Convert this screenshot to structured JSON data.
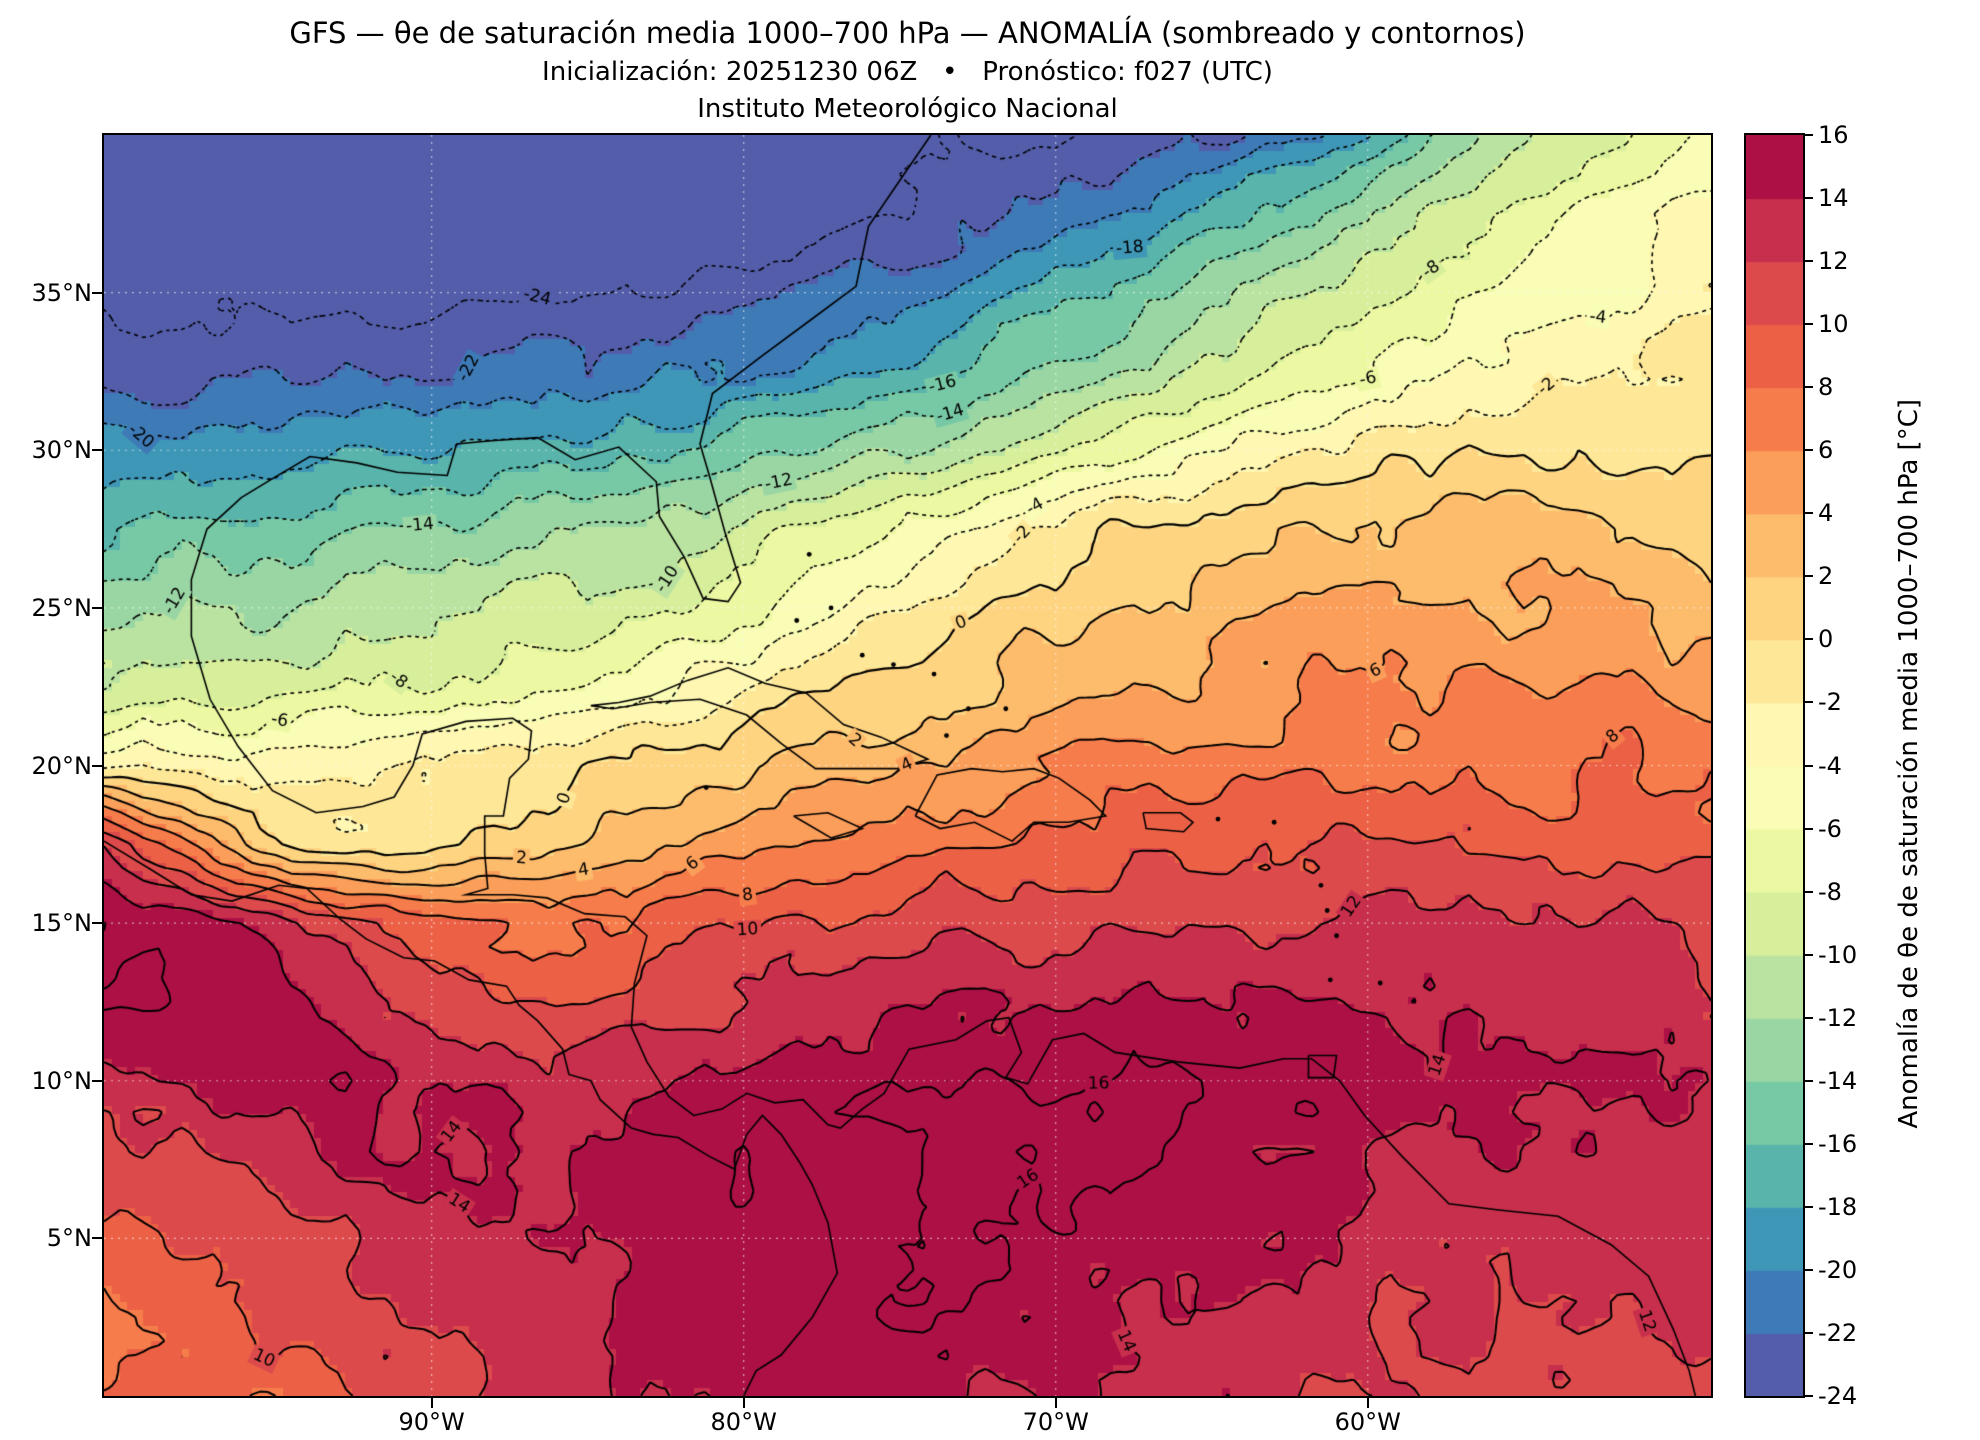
{
  "chart_data": {
    "type": "heatmap",
    "subtype": "filled_contour_map",
    "title": "GFS — θe de saturación media 1000–700 hPa — ANOMALÍA (sombreado y contornos)",
    "subtitle": "Inicialización: 20251230 06Z   •   Pronóstico: f027 (UTC)",
    "institution": "Instituto Meteorológico Nacional",
    "units": "°C",
    "lon_min": -100.5,
    "lon_max": -49.0,
    "lat_min": 0,
    "lat_max": 40,
    "rows_order": "lat 40N (first row) to 0N (last row)",
    "values": [
      [
        -26,
        -26,
        -26,
        -26,
        -26,
        -26,
        -26,
        -26,
        -26,
        -26,
        -25,
        -25,
        -24,
        -23,
        -22,
        -20,
        -17,
        -13,
        -10,
        -8,
        -6
      ],
      [
        -26,
        -26,
        -26,
        -26,
        -26,
        -26,
        -26,
        -25,
        -25,
        -25,
        -24,
        -23,
        -21,
        -19,
        -17,
        -14,
        -11,
        -9,
        -7,
        -5,
        -4
      ],
      [
        -25,
        -25,
        -25,
        -25,
        -25,
        -24,
        -24,
        -24,
        -23,
        -22,
        -21,
        -19,
        -17,
        -15,
        -12,
        -10,
        -8,
        -6,
        -5,
        -4,
        -3
      ],
      [
        -23,
        -23,
        -22,
        -22,
        -22,
        -21,
        -21,
        -20,
        -20,
        -19,
        -17,
        -15,
        -13,
        -11,
        -9,
        -7,
        -5,
        -4,
        -3,
        -2,
        -1
      ],
      [
        -20,
        -19,
        -19,
        -18,
        -18,
        -17,
        -17,
        -16,
        -15,
        -14,
        -12,
        -10,
        -8,
        -6,
        -4,
        -2,
        -1,
        0,
        0,
        0,
        -1
      ],
      [
        -16,
        -15,
        -15,
        -14,
        -14,
        -13,
        -12,
        -11,
        -9,
        -7,
        -5,
        -3,
        -1,
        0,
        1,
        2,
        2,
        3,
        3,
        2,
        2
      ],
      [
        -13,
        -12,
        -12,
        -11,
        -11,
        -10,
        -9,
        -8,
        -6,
        -4,
        -2,
        0,
        1,
        2,
        3,
        4,
        4,
        4,
        4,
        4,
        3
      ],
      [
        -10,
        -9,
        -9,
        -8,
        -8,
        -7,
        -6,
        -4,
        -2,
        0,
        1,
        2,
        3,
        4,
        5,
        6,
        6,
        6,
        6,
        6,
        5
      ],
      [
        -2,
        -3,
        -3,
        -3,
        -2,
        -1,
        0,
        1,
        2,
        3,
        4,
        5,
        6,
        7,
        7,
        7,
        7,
        8,
        7,
        8,
        7
      ],
      [
        12,
        6,
        1,
        -1,
        -1,
        0,
        2,
        4,
        6,
        7,
        7,
        8,
        8,
        9,
        9,
        10,
        10,
        10,
        10,
        9,
        9
      ],
      [
        16,
        15,
        13,
        11,
        9,
        8,
        8,
        9,
        10,
        10,
        11,
        11,
        11,
        12,
        12,
        12,
        12,
        13,
        12,
        12,
        11
      ],
      [
        16,
        16,
        15,
        13,
        11,
        10,
        10,
        11,
        12,
        13,
        14,
        14,
        14,
        14,
        14,
        14,
        14,
        14,
        13,
        13,
        13
      ],
      [
        13,
        14,
        15,
        15,
        14,
        13,
        13,
        14,
        15,
        15,
        16,
        16,
        16,
        16,
        16,
        15,
        15,
        15,
        14,
        14,
        14
      ],
      [
        11,
        12,
        13,
        14,
        14,
        14,
        14,
        15,
        16,
        16,
        16,
        16,
        16,
        16,
        15,
        15,
        14,
        14,
        14,
        13,
        13
      ],
      [
        9,
        10,
        11,
        12,
        13,
        14,
        14,
        15,
        16,
        16,
        16,
        16,
        16,
        15,
        15,
        14,
        13,
        13,
        13,
        12,
        13
      ],
      [
        8,
        9,
        10,
        11,
        12,
        13,
        14,
        15,
        16,
        16,
        16,
        15,
        15,
        14,
        14,
        13,
        12,
        12,
        12,
        12,
        12
      ],
      [
        8,
        8,
        9,
        10,
        11,
        12,
        13,
        14,
        15,
        15,
        15,
        14,
        14,
        13,
        13,
        12,
        12,
        11,
        11,
        11,
        11
      ]
    ],
    "level_min": -24,
    "level_max": 16,
    "level_step": 2,
    "colormap": [
      "#5e4fa2",
      "#3288bd",
      "#66c2a5",
      "#abdda4",
      "#e6f598",
      "#ffffbf",
      "#fee08b",
      "#fdae61",
      "#f46d43",
      "#d53e4f",
      "#9e0142"
    ],
    "contour_style": {
      "negative": "dotted",
      "zero": "dashed",
      "positive": "solid",
      "color": "#000000"
    },
    "lat_ticks": [
      {
        "label": "35°N",
        "value": 35
      },
      {
        "label": "30°N",
        "value": 30
      },
      {
        "label": "25°N",
        "value": 25
      },
      {
        "label": "20°N",
        "value": 20
      },
      {
        "label": "15°N",
        "value": 15
      },
      {
        "label": "10°N",
        "value": 10
      },
      {
        "label": "5°N",
        "value": 5
      }
    ],
    "lon_ticks": [
      {
        "label": "90°W",
        "value": -90
      },
      {
        "label": "80°W",
        "value": -80
      },
      {
        "label": "70°W",
        "value": -70
      },
      {
        "label": "60°W",
        "value": -60
      }
    ],
    "colorbar": {
      "label": "Anomalía de θe de saturación media 1000–700 hPa [°C]",
      "ticks": [
        {
          "label": "16",
          "value": 16
        },
        {
          "label": "14",
          "value": 14
        },
        {
          "label": "12",
          "value": 12
        },
        {
          "label": "10",
          "value": 10
        },
        {
          "label": "8",
          "value": 8
        },
        {
          "label": "6",
          "value": 6
        },
        {
          "label": "4",
          "value": 4
        },
        {
          "label": "2",
          "value": 2
        },
        {
          "label": "0",
          "value": 0
        },
        {
          "label": "-2",
          "value": -2
        },
        {
          "label": "-4",
          "value": -4
        },
        {
          "label": "-6",
          "value": -6
        },
        {
          "label": "-8",
          "value": -8
        },
        {
          "label": "-10",
          "value": -10
        },
        {
          "label": "-12",
          "value": -12
        },
        {
          "label": "-14",
          "value": -14
        },
        {
          "label": "-16",
          "value": -16
        },
        {
          "label": "-18",
          "value": -18
        },
        {
          "label": "-20",
          "value": -20
        },
        {
          "label": "-22",
          "value": -22
        },
        {
          "label": "-24",
          "value": -24
        }
      ]
    },
    "coastlines": [
      [
        [
          -74,
          40
        ],
        [
          -74.9,
          38.7
        ],
        [
          -76,
          37.1
        ],
        [
          -76.4,
          35.2
        ],
        [
          -77.9,
          34.1
        ],
        [
          -79.4,
          33
        ],
        [
          -81,
          31.8
        ],
        [
          -81.4,
          30.2
        ],
        [
          -81.1,
          29.2
        ],
        [
          -80.6,
          27.4
        ],
        [
          -80.1,
          25.8
        ],
        [
          -80.5,
          25.2
        ],
        [
          -81.3,
          25.3
        ],
        [
          -81.9,
          26.6
        ],
        [
          -82.7,
          27.9
        ],
        [
          -82.8,
          29
        ],
        [
          -84,
          30.1
        ],
        [
          -85.4,
          29.7
        ],
        [
          -86.6,
          30.4
        ],
        [
          -88.1,
          30.3
        ],
        [
          -89.2,
          30.2
        ],
        [
          -89.5,
          29.2
        ],
        [
          -91.1,
          29.3
        ],
        [
          -92.4,
          29.6
        ],
        [
          -93.9,
          29.8
        ],
        [
          -95.1,
          29.1
        ],
        [
          -96.1,
          28.5
        ],
        [
          -97.2,
          27.5
        ],
        [
          -97.7,
          25.9
        ],
        [
          -97.7,
          24.1
        ],
        [
          -97.1,
          22.1
        ],
        [
          -96.2,
          20.6
        ],
        [
          -95.1,
          19.2
        ],
        [
          -93.7,
          18.5
        ],
        [
          -92.2,
          18.7
        ],
        [
          -91.2,
          19
        ],
        [
          -90.6,
          20
        ],
        [
          -90.3,
          21
        ],
        [
          -88.9,
          21.4
        ],
        [
          -87.4,
          21.5
        ],
        [
          -86.8,
          21.1
        ],
        [
          -86.9,
          20.2
        ],
        [
          -87.5,
          19.6
        ],
        [
          -87.7,
          18.4
        ],
        [
          -88.3,
          18.4
        ],
        [
          -88.3,
          17.2
        ],
        [
          -88.2,
          16.1
        ],
        [
          -88.9,
          15.9
        ],
        [
          -87.4,
          15.9
        ],
        [
          -86.3,
          15.8
        ],
        [
          -85.1,
          15.3
        ],
        [
          -83.8,
          15.2
        ],
        [
          -83.1,
          14.6
        ],
        [
          -83.5,
          13.1
        ],
        [
          -83.6,
          11.7
        ],
        [
          -83.1,
          10.6
        ],
        [
          -82.4,
          9.5
        ],
        [
          -81.6,
          8.9
        ],
        [
          -80.7,
          9.1
        ],
        [
          -79.9,
          9.6
        ],
        [
          -79,
          9.3
        ],
        [
          -78.1,
          9.4
        ],
        [
          -77.3,
          8.6
        ],
        [
          -76.9,
          8.5
        ],
        [
          -76.2,
          9.1
        ],
        [
          -75.5,
          9.6
        ],
        [
          -74.7,
          11
        ],
        [
          -73.2,
          11.3
        ],
        [
          -72.2,
          11.9
        ],
        [
          -71.5,
          12
        ],
        [
          -71.1,
          10.9
        ],
        [
          -71.6,
          10.1
        ],
        [
          -70.9,
          9.9
        ],
        [
          -70.1,
          11.3
        ],
        [
          -69.1,
          11.5
        ],
        [
          -68.1,
          10.9
        ],
        [
          -66.1,
          10.6
        ],
        [
          -64.1,
          10.4
        ],
        [
          -62.7,
          10.7
        ],
        [
          -61.8,
          10.7
        ],
        [
          -60.9,
          10
        ],
        [
          -60.1,
          8.9
        ],
        [
          -58.9,
          7.6
        ],
        [
          -57.4,
          6.1
        ],
        [
          -55.8,
          5.9
        ],
        [
          -53.9,
          5.7
        ],
        [
          -52.2,
          4.8
        ],
        [
          -51,
          3.8
        ],
        [
          -50.2,
          2.1
        ],
        [
          -49.7,
          0.8
        ],
        [
          -49.5,
          0
        ]
      ],
      [
        [
          -100.5,
          17.6
        ],
        [
          -99,
          16.7
        ],
        [
          -97.7,
          15.9
        ],
        [
          -96.4,
          15.7
        ],
        [
          -94.9,
          16.2
        ],
        [
          -94,
          16.1
        ],
        [
          -92.9,
          15.1
        ],
        [
          -92.1,
          14.5
        ],
        [
          -90.9,
          13.9
        ],
        [
          -89.9,
          13.8
        ],
        [
          -88.8,
          13.2
        ],
        [
          -87.6,
          13
        ],
        [
          -87.2,
          12.4
        ],
        [
          -86.6,
          11.9
        ],
        [
          -85.8,
          11
        ],
        [
          -85.6,
          10.2
        ],
        [
          -84.9,
          10
        ],
        [
          -84.6,
          9.4
        ],
        [
          -83.6,
          8.5
        ],
        [
          -82.9,
          8.3
        ],
        [
          -82.1,
          8.2
        ],
        [
          -81.1,
          7.6
        ],
        [
          -80.3,
          7.2
        ],
        [
          -79.9,
          8.3
        ],
        [
          -79.4,
          8.9
        ],
        [
          -78.8,
          8.3
        ],
        [
          -78.2,
          7.4
        ],
        [
          -77.8,
          6.7
        ],
        [
          -77.3,
          5.5
        ],
        [
          -77,
          3.9
        ],
        [
          -77.8,
          2.5
        ],
        [
          -78.8,
          1.3
        ],
        [
          -79.6,
          0.8
        ],
        [
          -80,
          0
        ]
      ],
      [
        [
          -84.9,
          21.9
        ],
        [
          -84,
          22
        ],
        [
          -83,
          22.2
        ],
        [
          -81.8,
          22.7
        ],
        [
          -80.5,
          23.1
        ],
        [
          -79.3,
          22.6
        ],
        [
          -78,
          22.3
        ],
        [
          -76.8,
          21.3
        ],
        [
          -75.6,
          20.9
        ],
        [
          -74.1,
          20.2
        ],
        [
          -75.1,
          19.9
        ],
        [
          -76.5,
          19.9
        ],
        [
          -77.7,
          19.9
        ],
        [
          -78.8,
          20.7
        ],
        [
          -79.9,
          21.6
        ],
        [
          -81.4,
          22.1
        ],
        [
          -83,
          22
        ],
        [
          -84.2,
          21.8
        ],
        [
          -84.9,
          21.9
        ]
      ],
      [
        [
          -74.5,
          18.4
        ],
        [
          -73.8,
          19.7
        ],
        [
          -72.7,
          19.9
        ],
        [
          -71.7,
          19.8
        ],
        [
          -70.7,
          19.9
        ],
        [
          -69.9,
          19.6
        ],
        [
          -68.9,
          18.9
        ],
        [
          -68.4,
          18.4
        ],
        [
          -69.6,
          18.2
        ],
        [
          -70.7,
          18.2
        ],
        [
          -71.4,
          17.6
        ],
        [
          -72.6,
          18.2
        ],
        [
          -73.7,
          18
        ],
        [
          -74.5,
          18.4
        ]
      ],
      [
        [
          -78.4,
          18.4
        ],
        [
          -77.3,
          18.5
        ],
        [
          -76.2,
          18
        ],
        [
          -77.2,
          17.7
        ],
        [
          -78.4,
          18.4
        ]
      ],
      [
        [
          -67.2,
          18.5
        ],
        [
          -66,
          18.5
        ],
        [
          -65.6,
          18.2
        ],
        [
          -65.9,
          17.9
        ],
        [
          -67.1,
          18
        ],
        [
          -67.2,
          18.5
        ]
      ],
      [
        [
          -61.9,
          10.8
        ],
        [
          -61,
          10.8
        ],
        [
          -61.1,
          10.1
        ],
        [
          -61.9,
          10.1
        ],
        [
          -61.9,
          10.8
        ]
      ]
    ],
    "islands": [
      [
        -61.5,
        16.2
      ],
      [
        -61.3,
        15.4
      ],
      [
        -61,
        14.6
      ],
      [
        -61.2,
        13.2
      ],
      [
        -59.6,
        13.1
      ],
      [
        -63,
        18.2
      ],
      [
        -64.8,
        18.3
      ],
      [
        -77.9,
        26.7
      ],
      [
        -78.3,
        24.6
      ],
      [
        -77.2,
        25
      ],
      [
        -76.2,
        23.5
      ],
      [
        -75.2,
        23.2
      ],
      [
        -73.9,
        22.9
      ],
      [
        -72.8,
        21.8
      ],
      [
        -71.6,
        21.8
      ],
      [
        -73.5,
        20.95
      ],
      [
        -81.2,
        19.3
      ]
    ]
  }
}
